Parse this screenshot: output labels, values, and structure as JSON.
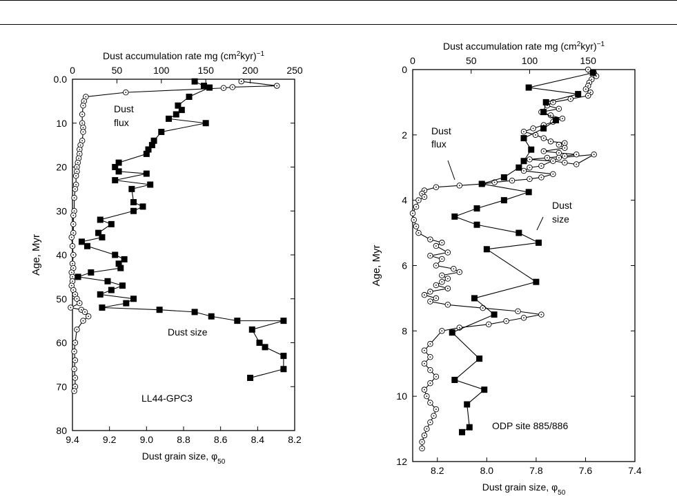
{
  "chart_data": [
    {
      "type": "line",
      "annotation": "LL44-GPC3",
      "top_axis": {
        "label": "Dust accumulation rate mg (cm",
        "sup": "2",
        "label2": "kyr)",
        "sup2": "−1",
        "range": [
          0,
          250
        ],
        "ticks": [
          "0",
          "50",
          "100",
          "150",
          "200",
          "250"
        ]
      },
      "bottom_axis": {
        "label": "Dust grain size, φ",
        "sub": "50",
        "range": [
          9.4,
          8.2
        ],
        "ticks": [
          "9.4",
          "9.2",
          "9.0",
          "8.8",
          "8.6",
          "8.4",
          "8.2"
        ]
      },
      "y_axis": {
        "label": "Age, Myr",
        "range": [
          0,
          80
        ],
        "ticks": [
          "0.0",
          "10",
          "20",
          "30",
          "40",
          "50",
          "60",
          "70",
          "80"
        ]
      },
      "series": [
        {
          "name": "Dust flux",
          "marker": "circle-dot",
          "axis": "top",
          "points": [
            [
              190,
              0.5
            ],
            [
              230,
              1.5
            ],
            [
              180,
              1.8
            ],
            [
              170,
              2.0
            ],
            [
              60,
              3
            ],
            [
              15,
              4
            ],
            [
              13,
              5
            ],
            [
              12,
              6
            ],
            [
              11,
              8
            ],
            [
              11,
              10
            ],
            [
              12,
              11
            ],
            [
              12,
              12
            ],
            [
              11,
              14
            ],
            [
              9,
              15
            ],
            [
              8,
              16
            ],
            [
              8,
              17
            ],
            [
              7,
              18
            ],
            [
              6,
              19
            ],
            [
              5,
              20
            ],
            [
              5,
              21
            ],
            [
              4,
              22
            ],
            [
              4,
              24
            ],
            [
              3,
              25
            ],
            [
              2,
              27
            ],
            [
              2,
              30
            ],
            [
              1,
              31
            ],
            [
              1,
              33
            ],
            [
              1,
              35
            ],
            [
              -1,
              36
            ],
            [
              0,
              38
            ],
            [
              1,
              40
            ],
            [
              0,
              42
            ],
            [
              1,
              43
            ],
            [
              -1,
              44
            ],
            [
              0,
              45
            ],
            [
              0,
              46
            ],
            [
              -1,
              47
            ],
            [
              1,
              48
            ],
            [
              3,
              49
            ],
            [
              5,
              50
            ],
            [
              8,
              51
            ],
            [
              -2,
              52
            ],
            [
              10,
              52.5
            ],
            [
              14,
              53
            ],
            [
              18,
              54
            ],
            [
              12,
              55
            ],
            [
              5,
              57
            ],
            [
              3,
              60
            ],
            [
              2,
              62
            ],
            [
              3,
              64
            ],
            [
              2,
              66
            ],
            [
              3,
              68
            ],
            [
              3,
              70
            ],
            [
              2,
              71
            ]
          ]
        },
        {
          "name": "Dust size",
          "marker": "square",
          "axis": "bottom",
          "points": [
            [
              8.74,
              0.5
            ],
            [
              8.69,
              1.5
            ],
            [
              8.66,
              1.9
            ],
            [
              8.77,
              4
            ],
            [
              8.83,
              6
            ],
            [
              8.81,
              7
            ],
            [
              8.84,
              8
            ],
            [
              8.88,
              9
            ],
            [
              8.68,
              10
            ],
            [
              8.92,
              12
            ],
            [
              8.96,
              14
            ],
            [
              8.97,
              15
            ],
            [
              8.99,
              16
            ],
            [
              9.0,
              17
            ],
            [
              9.15,
              19
            ],
            [
              9.17,
              20
            ],
            [
              9.15,
              21
            ],
            [
              9.0,
              21.5
            ],
            [
              9.17,
              23
            ],
            [
              8.98,
              24
            ],
            [
              9.08,
              25
            ],
            [
              9.07,
              28
            ],
            [
              9.02,
              29
            ],
            [
              9.07,
              30
            ],
            [
              9.25,
              32
            ],
            [
              9.19,
              33
            ],
            [
              9.26,
              35
            ],
            [
              9.24,
              36
            ],
            [
              9.35,
              37
            ],
            [
              9.32,
              38
            ],
            [
              9.17,
              40
            ],
            [
              9.12,
              41
            ],
            [
              9.15,
              42
            ],
            [
              9.14,
              43
            ],
            [
              9.3,
              44
            ],
            [
              9.37,
              45
            ],
            [
              9.21,
              46
            ],
            [
              9.13,
              47
            ],
            [
              9.19,
              48
            ],
            [
              9.25,
              49
            ],
            [
              9.07,
              50
            ],
            [
              9.11,
              51
            ],
            [
              9.24,
              52
            ],
            [
              8.93,
              52.5
            ],
            [
              8.74,
              53
            ],
            [
              8.65,
              54
            ],
            [
              8.51,
              55
            ],
            [
              8.26,
              55
            ],
            [
              8.43,
              57
            ],
            [
              8.39,
              60
            ],
            [
              8.36,
              61
            ],
            [
              8.26,
              63
            ],
            [
              8.26,
              66
            ],
            [
              8.44,
              68
            ]
          ]
        }
      ]
    },
    {
      "type": "line",
      "annotation": "ODP site 885/886",
      "top_axis": {
        "label": "Dust accumulation rate mg (cm",
        "sup": "2",
        "label2": "kyr)",
        "sup2": "−1",
        "range": [
          0,
          190
        ],
        "ticks": [
          "0",
          "50",
          "100",
          "150"
        ]
      },
      "bottom_axis": {
        "label": "Dust grain size, φ",
        "sub": "50",
        "range": [
          8.3,
          7.4
        ],
        "ticks": [
          "8.2",
          "8.0",
          "7.8",
          "7.6",
          "7.4"
        ]
      },
      "y_axis": {
        "label": "Age, Myr",
        "range": [
          0,
          12
        ],
        "ticks": [
          "0",
          "2",
          "4",
          "6",
          "8",
          "10",
          "12"
        ]
      },
      "series": [
        {
          "name": "Dust flux",
          "marker": "circle-dot",
          "axis": "top",
          "points": [
            [
              150,
              0
            ],
            [
              155,
              0.1
            ],
            [
              157,
              0.2
            ],
            [
              153,
              0.3
            ],
            [
              151,
              0.4
            ],
            [
              150,
              0.5
            ],
            [
              148,
              0.6
            ],
            [
              152,
              0.7
            ],
            [
              150,
              0.8
            ],
            [
              135,
              0.9
            ],
            [
              120,
              1.0
            ],
            [
              115,
              1.1
            ],
            [
              125,
              1.2
            ],
            [
              110,
              1.3
            ],
            [
              118,
              1.4
            ],
            [
              128,
              1.5
            ],
            [
              120,
              1.6
            ],
            [
              112,
              1.7
            ],
            [
              103,
              1.8
            ],
            [
              95,
              1.9
            ],
            [
              105,
              2.0
            ],
            [
              112,
              2.1
            ],
            [
              118,
              2.2
            ],
            [
              130,
              2.25
            ],
            [
              125,
              2.3
            ],
            [
              130,
              2.4
            ],
            [
              112,
              2.5
            ],
            [
              125,
              2.55
            ],
            [
              140,
              2.6
            ],
            [
              130,
              2.65
            ],
            [
              115,
              2.7
            ],
            [
              100,
              2.75
            ],
            [
              120,
              2.8
            ],
            [
              130,
              2.85
            ],
            [
              140,
              2.9
            ],
            [
              155,
              2.6
            ],
            [
              125,
              2.7
            ],
            [
              110,
              2.95
            ],
            [
              100,
              3.0
            ],
            [
              95,
              3.1
            ],
            [
              120,
              3.2
            ],
            [
              110,
              3.3
            ],
            [
              100,
              3.35
            ],
            [
              85,
              3.4
            ],
            [
              70,
              3.45
            ],
            [
              60,
              3.5
            ],
            [
              40,
              3.55
            ],
            [
              20,
              3.6
            ],
            [
              10,
              3.7
            ],
            [
              8,
              3.8
            ],
            [
              10,
              3.9
            ],
            [
              5,
              4.0
            ],
            [
              3,
              4.2
            ],
            [
              0,
              4.4
            ],
            [
              1,
              4.6
            ],
            [
              3,
              4.8
            ],
            [
              5,
              5.0
            ],
            [
              15,
              5.2
            ],
            [
              25,
              5.3
            ],
            [
              20,
              5.4
            ],
            [
              30,
              5.6
            ],
            [
              15,
              5.7
            ],
            [
              25,
              5.8
            ],
            [
              20,
              6.0
            ],
            [
              35,
              6.1
            ],
            [
              40,
              6.2
            ],
            [
              25,
              6.3
            ],
            [
              30,
              6.4
            ],
            [
              25,
              6.5
            ],
            [
              20,
              6.6
            ],
            [
              30,
              6.7
            ],
            [
              15,
              6.8
            ],
            [
              10,
              6.9
            ],
            [
              20,
              7.0
            ],
            [
              15,
              7.1
            ],
            [
              30,
              7.2
            ],
            [
              60,
              7.3
            ],
            [
              90,
              7.4
            ],
            [
              110,
              7.5
            ],
            [
              95,
              7.6
            ],
            [
              80,
              7.7
            ],
            [
              65,
              7.8
            ],
            [
              40,
              7.9
            ],
            [
              25,
              8.0
            ],
            [
              15,
              8.4
            ],
            [
              10,
              8.6
            ],
            [
              15,
              8.8
            ],
            [
              10,
              9.0
            ],
            [
              15,
              9.2
            ],
            [
              20,
              9.4
            ],
            [
              15,
              9.6
            ],
            [
              10,
              9.8
            ],
            [
              12,
              10.0
            ],
            [
              15,
              10.2
            ],
            [
              20,
              10.4
            ],
            [
              18,
              10.6
            ],
            [
              15,
              10.8
            ],
            [
              12,
              11.0
            ],
            [
              10,
              11.2
            ],
            [
              8,
              11.4
            ],
            [
              8,
              11.6
            ]
          ]
        },
        {
          "name": "Dust size",
          "marker": "square",
          "axis": "bottom",
          "points": [
            [
              7.57,
              0.1
            ],
            [
              7.83,
              0.55
            ],
            [
              7.63,
              0.75
            ],
            [
              7.76,
              1.0
            ],
            [
              7.77,
              1.3
            ],
            [
              7.72,
              1.55
            ],
            [
              7.77,
              1.8
            ],
            [
              7.85,
              2.1
            ],
            [
              7.82,
              2.45
            ],
            [
              7.85,
              2.8
            ],
            [
              7.87,
              3.0
            ],
            [
              7.93,
              3.3
            ],
            [
              8.02,
              3.5
            ],
            [
              7.83,
              3.75
            ],
            [
              7.93,
              4.0
            ],
            [
              8.04,
              4.25
            ],
            [
              8.13,
              4.5
            ],
            [
              8.04,
              4.75
            ],
            [
              7.87,
              5.0
            ],
            [
              7.79,
              5.3
            ],
            [
              8.0,
              5.5
            ],
            [
              7.8,
              6.5
            ],
            [
              8.05,
              7.0
            ],
            [
              7.97,
              7.5
            ],
            [
              8.14,
              8.05
            ],
            [
              8.03,
              8.85
            ],
            [
              8.13,
              9.5
            ],
            [
              8.01,
              9.8
            ],
            [
              8.08,
              10.25
            ],
            [
              8.07,
              10.95
            ],
            [
              8.1,
              11.1
            ]
          ]
        }
      ]
    }
  ]
}
